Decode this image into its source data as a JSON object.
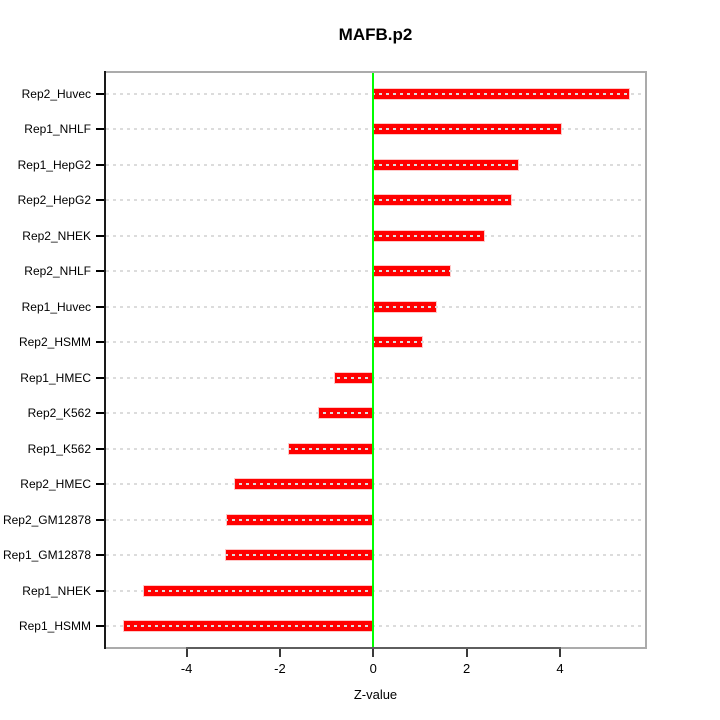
{
  "chart_data": {
    "type": "bar",
    "orientation": "horizontal",
    "title": "MAFB.p2",
    "xlabel": "Z-value",
    "ylabel": "",
    "categories": [
      "Rep2_Huvec",
      "Rep1_NHLF",
      "Rep1_HepG2",
      "Rep2_HepG2",
      "Rep2_NHEK",
      "Rep2_NHLF",
      "Rep1_Huvec",
      "Rep2_HSMM",
      "Rep1_HMEC",
      "Rep2_K562",
      "Rep1_K562",
      "Rep2_HMEC",
      "Rep2_GM12878",
      "Rep1_GM12878",
      "Rep1_NHEK",
      "Rep1_HSMM"
    ],
    "values": [
      5.48,
      4.02,
      3.09,
      2.94,
      2.38,
      1.65,
      1.34,
      1.05,
      -0.82,
      -1.16,
      -1.8,
      -2.97,
      -3.14,
      -3.16,
      -4.91,
      -5.35
    ],
    "x_ticks": [
      -4,
      -2,
      0,
      2,
      4
    ],
    "x_tick_labels": [
      "-4",
      "-2",
      "0",
      "2",
      "4"
    ],
    "xlim": [
      -5.77,
      5.86
    ],
    "bar_color": "#ff0000",
    "zero_line_color": "#00ff00",
    "grid": "dotted horizontal line per category, drawn over bars",
    "gridline_color": "#dcdcdc",
    "box_color": "#ababab",
    "axis_segment_color": "#5e5e5e",
    "legend": "none"
  }
}
